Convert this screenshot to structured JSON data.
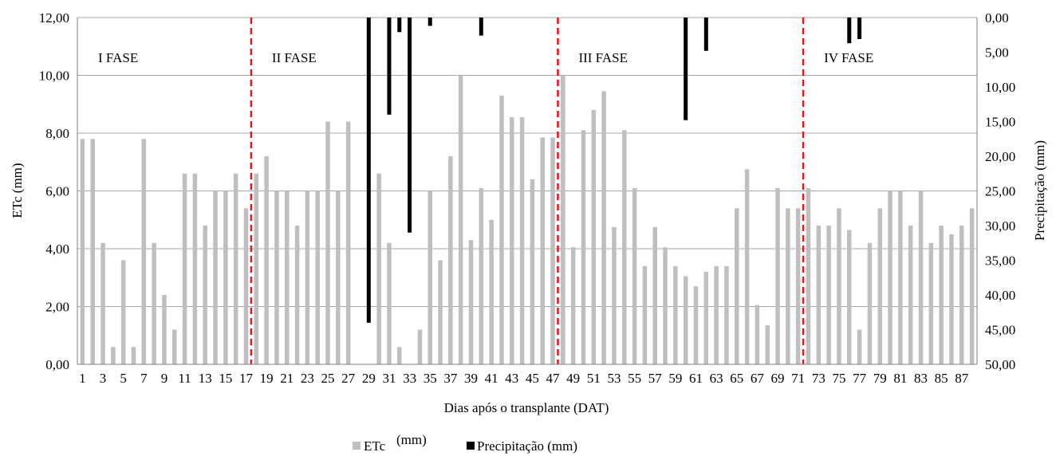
{
  "chart_data": {
    "type": "bar",
    "xlabel": "Dias após o transplante (DAT)",
    "ylabel": "ETc (mm)",
    "y2label": "Precipitação (mm)",
    "ylim": [
      0,
      12
    ],
    "y2lim": [
      0,
      50
    ],
    "y2_inverted": true,
    "grid": true,
    "yticks": [
      "0,00",
      "2,00",
      "4,00",
      "6,00",
      "8,00",
      "10,00",
      "12,00"
    ],
    "y2ticks": [
      "0,00",
      "5,00",
      "10,00",
      "15,00",
      "20,00",
      "25,00",
      "30,00",
      "35,00",
      "40,00",
      "45,00",
      "50,00"
    ],
    "x": [
      1,
      2,
      3,
      4,
      5,
      6,
      7,
      8,
      9,
      10,
      11,
      12,
      13,
      14,
      15,
      16,
      17,
      18,
      19,
      20,
      21,
      22,
      23,
      24,
      25,
      26,
      27,
      28,
      29,
      30,
      31,
      32,
      33,
      34,
      35,
      36,
      37,
      38,
      39,
      40,
      41,
      42,
      43,
      44,
      45,
      46,
      47,
      48,
      49,
      50,
      51,
      52,
      53,
      54,
      55,
      56,
      57,
      58,
      59,
      60,
      61,
      62,
      63,
      64,
      65,
      66,
      67,
      68,
      69,
      70,
      71,
      72,
      73,
      74,
      75,
      76,
      77,
      78,
      79,
      80,
      81,
      82,
      83,
      84,
      85,
      86,
      87,
      88
    ],
    "xtick_labels": [
      "1",
      "3",
      "5",
      "7",
      "9",
      "11",
      "13",
      "15",
      "17",
      "19",
      "21",
      "23",
      "25",
      "27",
      "29",
      "31",
      "33",
      "35",
      "37",
      "39",
      "41",
      "43",
      "45",
      "47",
      "49",
      "51",
      "53",
      "55",
      "57",
      "59",
      "61",
      "63",
      "65",
      "67",
      "69",
      "71",
      "73",
      "75",
      "77",
      "79",
      "81",
      "83",
      "85",
      "87"
    ],
    "series": [
      {
        "name": "ETc",
        "axis": "left",
        "color": "#bfbfbf",
        "values": [
          7.8,
          7.8,
          4.2,
          0.6,
          3.6,
          0.6,
          7.8,
          4.2,
          2.4,
          1.2,
          6.6,
          6.6,
          4.8,
          6.0,
          6.0,
          6.6,
          5.4,
          6.6,
          7.2,
          6.0,
          6.0,
          4.8,
          6.0,
          6.0,
          8.4,
          6.0,
          8.4,
          0,
          0,
          6.6,
          4.2,
          0.6,
          0,
          1.2,
          6.0,
          3.6,
          7.2,
          10.0,
          4.3,
          6.1,
          5.0,
          9.3,
          8.55,
          8.55,
          6.4,
          7.85,
          7.85,
          10.0,
          4.05,
          8.1,
          8.8,
          9.45,
          4.75,
          8.1,
          6.1,
          3.4,
          4.75,
          4.05,
          3.4,
          3.05,
          2.7,
          3.2,
          3.4,
          3.4,
          5.4,
          6.75,
          2.05,
          1.35,
          6.1,
          5.4,
          5.4,
          6.1,
          4.8,
          4.8,
          5.4,
          4.65,
          1.2,
          4.2,
          5.4,
          6.0,
          6.0,
          4.8,
          6.0,
          4.2,
          4.8,
          4.5,
          4.8,
          5.4
        ]
      },
      {
        "name": "Precipitação",
        "axis": "right",
        "color": "#000000",
        "values": [
          0,
          0,
          0,
          0,
          0,
          0,
          0,
          0,
          0,
          0,
          0,
          0,
          0,
          0,
          0,
          0,
          0,
          0,
          0,
          0,
          0,
          0,
          0,
          0,
          0,
          0,
          0,
          0,
          44.0,
          0,
          14.0,
          2.1,
          31.0,
          0,
          1.2,
          0,
          0,
          0,
          0,
          2.6,
          0,
          0,
          0,
          0,
          0,
          0,
          0,
          0,
          0,
          0,
          0,
          0,
          0,
          0,
          0,
          0,
          0,
          0,
          0,
          14.8,
          0,
          4.8,
          0,
          0,
          0,
          0,
          0,
          0,
          0,
          0,
          0,
          0,
          0,
          0,
          0,
          3.7,
          3.1,
          0,
          0,
          0,
          0,
          0,
          0,
          0,
          0,
          0,
          0,
          0
        ]
      }
    ],
    "phases": [
      {
        "label": "I FASE",
        "start": 1
      },
      {
        "label": "II FASE",
        "start": 18
      },
      {
        "label": "III FASE",
        "start": 48
      },
      {
        "label": "IV FASE",
        "start": 72
      }
    ],
    "phase_dividers_after": [
      17,
      47,
      71
    ],
    "legend": {
      "position": "bottom",
      "items": [
        {
          "label": "ETc",
          "unit": "(mm)",
          "color": "#bfbfbf"
        },
        {
          "label": "Precipitação (mm)",
          "color": "#000000"
        }
      ]
    }
  }
}
